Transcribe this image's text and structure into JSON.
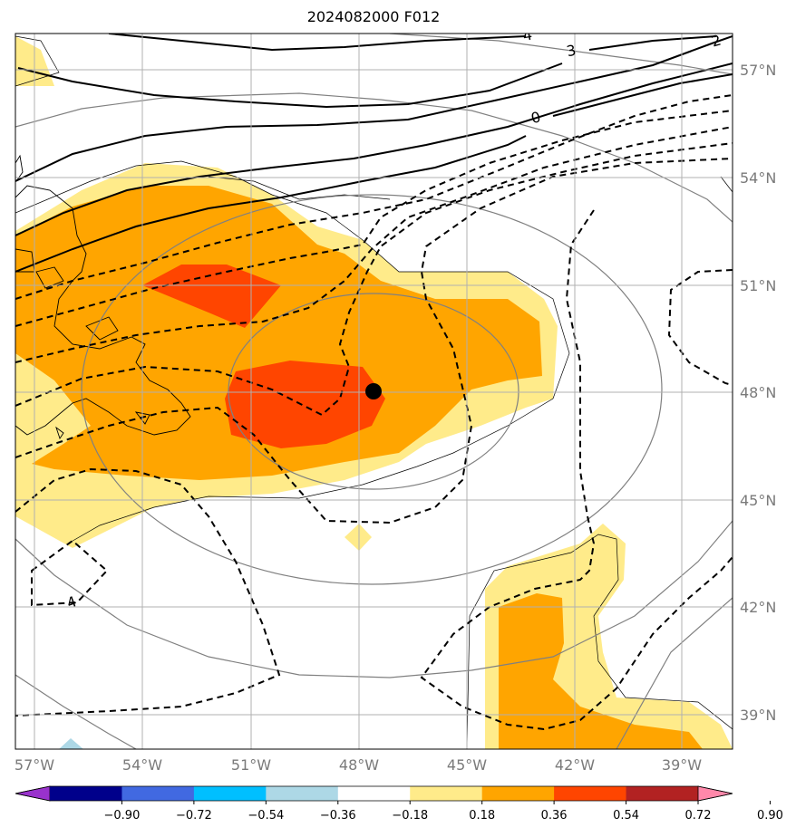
{
  "title": "2024082000 F012",
  "map": {
    "lat_labels": [
      "57°N",
      "54°N",
      "51°N",
      "48°N",
      "45°N",
      "42°N",
      "39°N"
    ],
    "lon_labels": [
      "57°W",
      "54°W",
      "51°W",
      "48°W",
      "45°W",
      "42°W",
      "39°W"
    ],
    "contour_labels": [
      "4",
      "3",
      "2",
      "0",
      "4"
    ],
    "center_marker": "low-center-dot"
  },
  "colorbar": {
    "ticks": [
      "−0.90",
      "−0.72",
      "−0.54",
      "−0.36",
      "−0.18",
      "0.18",
      "0.36",
      "0.54",
      "0.72",
      "0.90"
    ],
    "colors": [
      "#9932cc",
      "#00008b",
      "#4169e1",
      "#00bfff",
      "#add8e6",
      "#ffffff",
      "#ffeb8a",
      "#ffa500",
      "#ff4500",
      "#b22222",
      "#ff88aa"
    ]
  },
  "colors": {
    "fill_low": "#ffeb8a",
    "fill_mid": "#ffa500",
    "fill_high": "#ff4500",
    "light_blue": "#add8e6",
    "gridline": "#b0b0b0",
    "gray_contour": "#808080"
  }
}
